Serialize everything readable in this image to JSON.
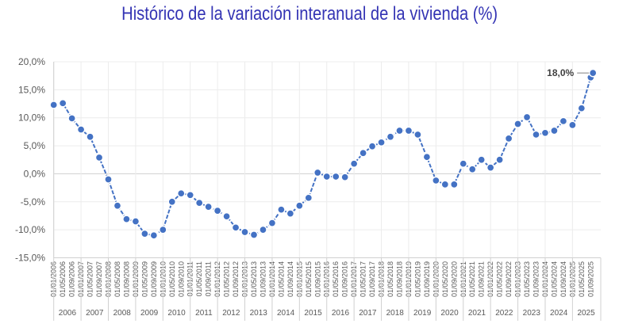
{
  "chart_data": {
    "type": "line",
    "title": "Histórico de la variación interanual de la vivienda (%)",
    "xlabel": "",
    "ylabel": "",
    "ylim": [
      -15,
      20
    ],
    "y_ticks": [
      "20,0%",
      "15,0%",
      "10,0%",
      "5,0%",
      "0,0%",
      "-5,0%",
      "-10,0%",
      "-15,0%"
    ],
    "y_tick_values": [
      20,
      15,
      10,
      5,
      0,
      -5,
      -10,
      -15
    ],
    "grid": true,
    "legend": "none",
    "series_color": "#4472C4",
    "x_tick_labels": [
      "01/01/2006",
      "01/05/2006",
      "01/09/2006",
      "01/01/2007",
      "01/05/2007",
      "01/09/2007",
      "01/01/2008",
      "01/05/2008",
      "01/09/2008",
      "01/01/2009",
      "01/05/2009",
      "01/09/2009",
      "01/01/2010",
      "01/05/2010",
      "01/09/2010",
      "01/01/2011",
      "01/05/2011",
      "01/09/2011",
      "01/01/2012",
      "01/05/2012",
      "01/09/2012",
      "01/01/2013",
      "01/05/2013",
      "01/09/2013",
      "01/01/2014",
      "01/05/2014",
      "01/09/2014",
      "01/01/2015",
      "01/05/2015",
      "01/09/2015",
      "01/01/2016",
      "01/05/2016",
      "01/09/2016",
      "01/01/2017",
      "01/05/2017",
      "01/09/2017",
      "01/01/2018",
      "01/05/2018",
      "01/09/2018",
      "01/01/2019",
      "01/05/2019",
      "01/09/2019",
      "01/01/2020",
      "01/05/2020",
      "01/09/2020",
      "01/01/2021",
      "01/05/2021",
      "01/09/2021",
      "01/01/2022",
      "01/05/2022",
      "01/09/2022",
      "01/01/2023",
      "01/05/2023",
      "01/09/2023",
      "01/01/2024",
      "01/05/2024",
      "01/09/2024",
      "01/01/2025",
      "01/05/2025",
      "01/09/2025"
    ],
    "year_labels": [
      "2006",
      "2007",
      "2008",
      "2009",
      "2010",
      "2011",
      "2012",
      "2013",
      "2014",
      "2015",
      "2016",
      "2017",
      "2018",
      "2019",
      "2020",
      "2021",
      "2022",
      "2023",
      "2024",
      "2025"
    ],
    "x": [
      "01/01/2006",
      "01/05/2006",
      "01/09/2006",
      "01/01/2007",
      "01/05/2007",
      "01/09/2007",
      "01/01/2008",
      "01/05/2008",
      "01/09/2008",
      "01/01/2009",
      "01/05/2009",
      "01/09/2009",
      "01/01/2010",
      "01/05/2010",
      "01/09/2010",
      "01/01/2011",
      "01/05/2011",
      "01/09/2011",
      "01/01/2012",
      "01/05/2012",
      "01/09/2012",
      "01/01/2013",
      "01/05/2013",
      "01/09/2013",
      "01/01/2014",
      "01/05/2014",
      "01/09/2014",
      "01/01/2015",
      "01/05/2015",
      "01/09/2015",
      "01/01/2016",
      "01/05/2016",
      "01/09/2016",
      "01/01/2017",
      "01/05/2017",
      "01/09/2017",
      "01/01/2018",
      "01/05/2018",
      "01/09/2018",
      "01/01/2019",
      "01/05/2019",
      "01/09/2019",
      "01/01/2020",
      "01/05/2020",
      "01/09/2020",
      "01/01/2021",
      "01/05/2021",
      "01/09/2021",
      "01/01/2022",
      "01/05/2022",
      "01/09/2022",
      "01/01/2023",
      "01/05/2023",
      "01/09/2023",
      "01/01/2024",
      "01/05/2024",
      "01/09/2024",
      "01/01/2025",
      "01/05/2025",
      "01/09/2025",
      "01/10/2025"
    ],
    "values": [
      12.3,
      12.6,
      9.9,
      7.9,
      6.6,
      2.9,
      -1.0,
      -5.7,
      -8.1,
      -8.5,
      -10.7,
      -11.0,
      -10.0,
      -5.0,
      -3.5,
      -3.8,
      -5.2,
      -5.9,
      -6.6,
      -7.6,
      -9.6,
      -10.4,
      -10.9,
      -10.0,
      -8.8,
      -6.4,
      -7.1,
      -5.7,
      -4.3,
      0.2,
      -0.5,
      -0.5,
      -0.6,
      1.8,
      3.7,
      4.9,
      5.6,
      6.6,
      7.7,
      7.7,
      7.0,
      3.0,
      -1.2,
      -1.9,
      -1.9,
      1.8,
      0.8,
      2.5,
      1.1,
      2.5,
      6.3,
      8.9,
      10.1,
      7.0,
      7.3,
      7.7,
      9.4,
      8.7,
      11.7,
      17.2,
      18.0
    ],
    "annotations": [
      {
        "label": "18,0%",
        "x": "01/10/2025",
        "y": 18.0
      }
    ]
  }
}
